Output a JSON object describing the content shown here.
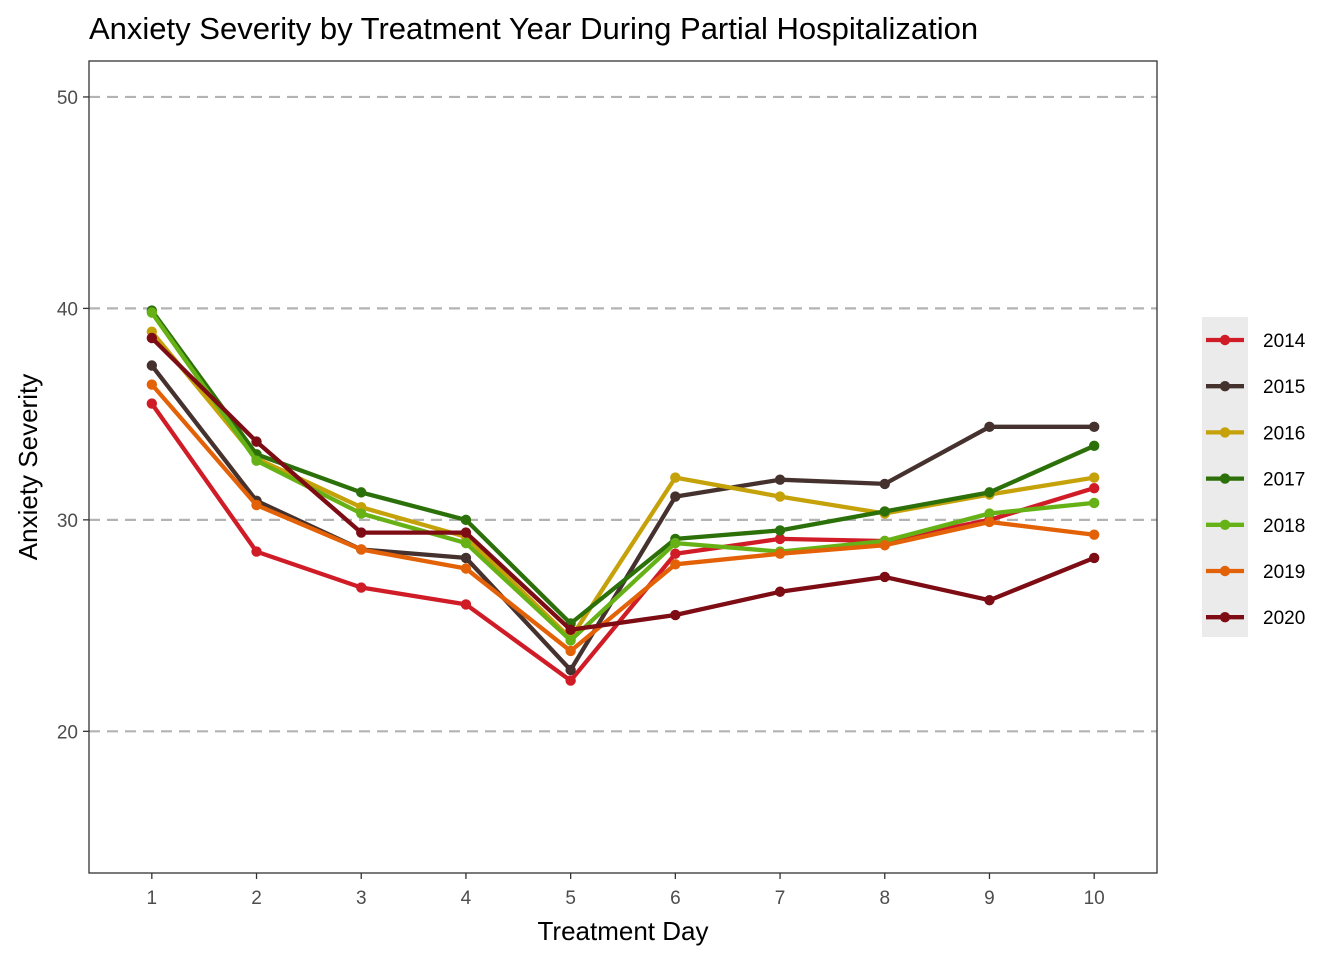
{
  "chart_data": {
    "type": "line",
    "title": "Anxiety Severity by Treatment Year During Partial Hospitalization",
    "xlabel": "Treatment Day",
    "ylabel": "Anxiety Severity",
    "xlim": [
      0.4,
      10.6
    ],
    "ylim": [
      13.3,
      51.7
    ],
    "x": [
      1,
      2,
      3,
      4,
      5,
      6,
      7,
      8,
      9,
      10
    ],
    "x_tick_labels": [
      "1",
      "2",
      "3",
      "4",
      "5",
      "6",
      "7",
      "8",
      "9",
      "10"
    ],
    "y_ticks": [
      20,
      30,
      40,
      50
    ],
    "y_tick_labels": [
      "20",
      "30",
      "40",
      "50"
    ],
    "grid": "major-y dashed",
    "legend_position": "right",
    "series": [
      {
        "name": "2014",
        "color": "#d01c27",
        "values": [
          35.5,
          28.5,
          26.8,
          26.0,
          22.4,
          28.4,
          29.1,
          29.0,
          30.0,
          31.5
        ]
      },
      {
        "name": "2015",
        "color": "#45322e",
        "values": [
          37.3,
          30.9,
          28.6,
          28.2,
          22.9,
          31.1,
          31.9,
          31.7,
          34.4,
          34.4
        ]
      },
      {
        "name": "2016",
        "color": "#c6a20a",
        "values": [
          38.9,
          32.9,
          30.6,
          29.2,
          24.4,
          32.0,
          31.1,
          30.3,
          31.2,
          32.0
        ]
      },
      {
        "name": "2017",
        "color": "#2c700a",
        "values": [
          39.9,
          33.1,
          31.3,
          30.0,
          25.1,
          29.1,
          29.5,
          30.4,
          31.3,
          33.5
        ]
      },
      {
        "name": "2018",
        "color": "#66b216",
        "values": [
          39.8,
          32.8,
          30.3,
          28.9,
          24.3,
          28.9,
          28.5,
          29.0,
          30.3,
          30.8
        ]
      },
      {
        "name": "2019",
        "color": "#e36208",
        "values": [
          36.4,
          30.7,
          28.6,
          27.7,
          23.8,
          27.9,
          28.4,
          28.8,
          29.9,
          29.3
        ]
      },
      {
        "name": "2020",
        "color": "#7d0c14",
        "values": [
          38.6,
          33.7,
          29.4,
          29.4,
          24.8,
          25.5,
          26.6,
          27.3,
          26.2,
          28.2
        ]
      }
    ]
  }
}
